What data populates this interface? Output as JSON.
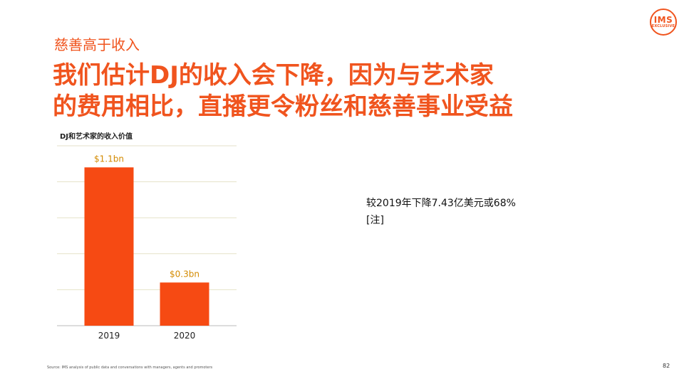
{
  "logo": {
    "line1": "IMS",
    "line2": "EXCLUSIVE"
  },
  "kicker": "慈善高于收入",
  "headline": {
    "line1": "我们估计DJ的收入会下降，因为与艺术家",
    "line2": "的费用相比，直播更令粉丝和慈善事业受益"
  },
  "chart_data": {
    "type": "bar",
    "title": "DJ和艺术家的收入价值",
    "categories": [
      "2019",
      "2020"
    ],
    "values": [
      1.1,
      0.3
    ],
    "data_labels": [
      "$1.1bn",
      "$0.3bn"
    ],
    "ylim": [
      0,
      1.25
    ],
    "grid": true,
    "bar_color": "#f64a13",
    "label_color": "#d38a00"
  },
  "annotation": {
    "line1": "较2019年下降7.43亿美元或68%",
    "line2": "[注]"
  },
  "footer": {
    "source": "Source: IMS analysis of public data and conversations with managers, agents and promoters",
    "page": "82"
  },
  "colors": {
    "accent": "#f0541e"
  }
}
